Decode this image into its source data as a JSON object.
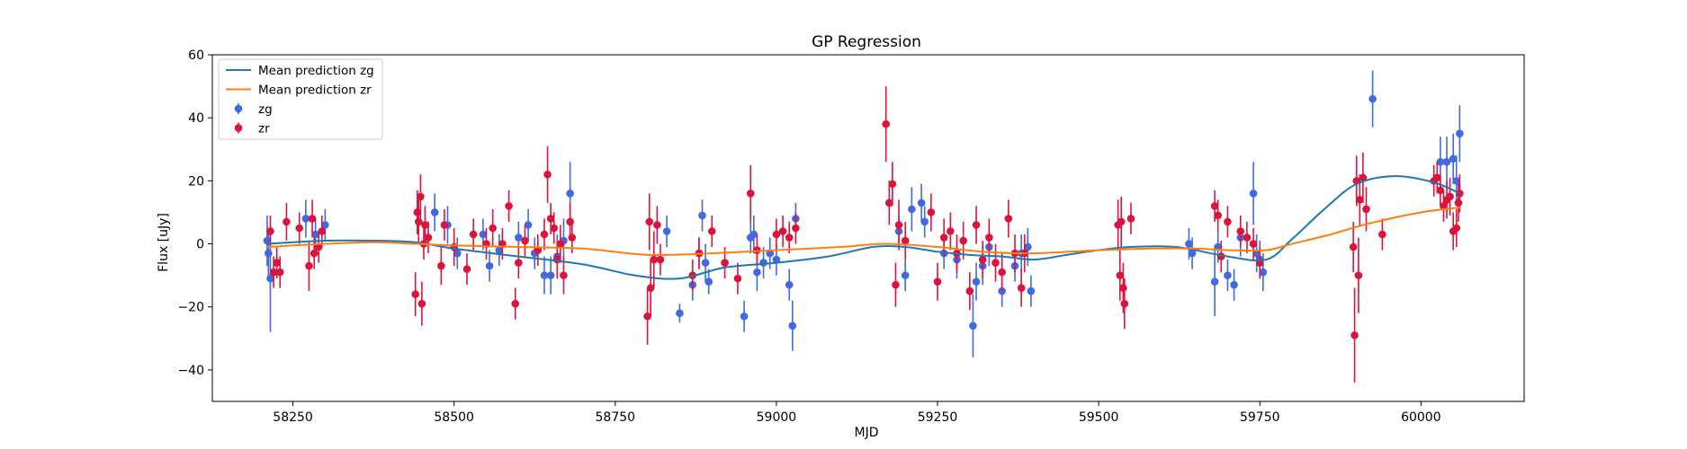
{
  "chart_data": {
    "type": "scatter",
    "title": "GP Regression",
    "xlabel": "MJD",
    "ylabel": "Flux [uJy]",
    "xlim": [
      58125,
      60160
    ],
    "ylim": [
      -50,
      60
    ],
    "xticks": [
      58250,
      58500,
      58750,
      59000,
      59250,
      59500,
      59750,
      60000
    ],
    "yticks": [
      -40,
      -20,
      0,
      20,
      40,
      60
    ],
    "grid": false,
    "legend": {
      "position": "top-left",
      "entries": [
        {
          "label": "Mean prediction zg",
          "kind": "line",
          "color": "#1f77b4"
        },
        {
          "label": "Mean prediction zr",
          "kind": "line",
          "color": "#ff7f0e"
        },
        {
          "label": "zg",
          "kind": "errorbar",
          "color": "#4169e1"
        },
        {
          "label": "zr",
          "kind": "errorbar",
          "color": "#dc143c"
        }
      ]
    },
    "series": [
      {
        "name": "Mean prediction zg",
        "kind": "line",
        "color": "#1f77b4",
        "x": [
          58210,
          58300,
          58380,
          58440,
          58500,
          58600,
          58700,
          58780,
          58850,
          58920,
          59000,
          59080,
          59150,
          59200,
          59250,
          59300,
          59350,
          59400,
          59450,
          59500,
          59550,
          59620,
          59700,
          59760,
          59800,
          59850,
          59900,
          59960,
          60020,
          60060
        ],
        "y": [
          0,
          1,
          1,
          0.5,
          -1.5,
          -4,
          -6.5,
          -10,
          -11,
          -7.5,
          -6,
          -4,
          -1,
          -1,
          -2.5,
          -3.5,
          -4,
          -5,
          -3.5,
          -2,
          -1,
          -1,
          -4,
          -5,
          1.5,
          11,
          19,
          21.5,
          19.5,
          16
        ]
      },
      {
        "name": "Mean prediction zr",
        "kind": "line",
        "color": "#ff7f0e",
        "x": [
          58210,
          58300,
          58380,
          58440,
          58500,
          58600,
          58700,
          58800,
          58900,
          59000,
          59100,
          59170,
          59250,
          59320,
          59400,
          59500,
          59580,
          59650,
          59700,
          59760,
          59800,
          59860,
          59920,
          60000,
          60060
        ],
        "y": [
          -1,
          0,
          0.5,
          0,
          -0.5,
          -1,
          -1.5,
          -3.5,
          -3,
          -2,
          -1,
          0,
          -1,
          -2.5,
          -3,
          -2,
          -1.5,
          -1.5,
          -2,
          -2,
          0,
          3,
          6.5,
          10,
          11.5
        ]
      },
      {
        "name": "zg",
        "kind": "errorbar",
        "color": "#4169e1",
        "x": [
          58210,
          58212,
          58215,
          58270,
          58285,
          58300,
          58470,
          58490,
          58505,
          58545,
          58555,
          58570,
          58600,
          58615,
          58625,
          58640,
          58650,
          58660,
          58670,
          58680,
          58830,
          58850,
          58870,
          58880,
          58885,
          58890,
          58895,
          58950,
          58960,
          58965,
          58970,
          58980,
          58990,
          59000,
          59020,
          59025,
          59030,
          59190,
          59200,
          59210,
          59225,
          59230,
          59260,
          59280,
          59305,
          59310,
          59320,
          59330,
          59350,
          59370,
          59380,
          59390,
          59395,
          59640,
          59645,
          59680,
          59685,
          59700,
          59710,
          59720,
          59740,
          59745,
          59750,
          59755,
          59925,
          60030,
          60040,
          60050,
          60055,
          60060
        ],
        "y": [
          1,
          -3,
          -11,
          8,
          3,
          6,
          10,
          6,
          -3,
          3,
          -7,
          -2,
          2,
          6,
          -3,
          -10,
          -10,
          -4,
          1,
          16,
          4,
          -22,
          -13,
          -3,
          9,
          -6,
          -12,
          -23,
          2,
          3,
          -9,
          -6,
          -3,
          -5,
          -13,
          -26,
          8,
          4,
          -10,
          11,
          13,
          7,
          -3,
          -5,
          -26,
          -12,
          -7,
          -1,
          -15,
          -7,
          -3,
          -1,
          -15,
          0,
          -3,
          -12,
          -1,
          -10,
          -13,
          2,
          16,
          -3,
          -5,
          -9,
          46,
          26,
          26,
          27,
          20,
          35
        ],
        "err": [
          8,
          8,
          17,
          6,
          5,
          5,
          6,
          6,
          5,
          5,
          5,
          5,
          5,
          5,
          5,
          6,
          6,
          7,
          7,
          10,
          5,
          3,
          5,
          5,
          5,
          6,
          4,
          5,
          5,
          6,
          6,
          5,
          5,
          5,
          5,
          8,
          5,
          5,
          5,
          7,
          6,
          5,
          5,
          6,
          10,
          6,
          6,
          6,
          5,
          5,
          6,
          6,
          5,
          5,
          5,
          11,
          5,
          5,
          5,
          6,
          10,
          6,
          6,
          6,
          9,
          8,
          8,
          8,
          8,
          9
        ]
      },
      {
        "name": "zr",
        "kind": "errorbar",
        "color": "#dc143c",
        "x": [
          58215,
          58220,
          58225,
          58230,
          58240,
          58260,
          58275,
          58280,
          58283,
          58290,
          58295,
          58440,
          58443,
          58445,
          58448,
          58450,
          58453,
          58455,
          58460,
          58480,
          58485,
          58500,
          58520,
          58530,
          58550,
          58560,
          58575,
          58585,
          58595,
          58600,
          58610,
          58630,
          58640,
          58645,
          58650,
          58655,
          58660,
          58665,
          58670,
          58680,
          58683,
          58800,
          58803,
          58805,
          58810,
          58815,
          58820,
          58870,
          58880,
          58900,
          58920,
          58940,
          58960,
          58970,
          59000,
          59010,
          59020,
          59030,
          59170,
          59175,
          59180,
          59185,
          59190,
          59200,
          59240,
          59250,
          59260,
          59270,
          59280,
          59290,
          59300,
          59310,
          59320,
          59330,
          59340,
          59350,
          59360,
          59370,
          59380,
          59385,
          59530,
          59533,
          59535,
          59538,
          59540,
          59550,
          59680,
          59685,
          59690,
          59700,
          59720,
          59730,
          59740,
          59750,
          59895,
          59897,
          59900,
          59903,
          59905,
          59910,
          59915,
          59940,
          60020,
          60025,
          60030,
          60035,
          60040,
          60045,
          60050,
          60055,
          60058,
          60060
        ],
        "y": [
          4,
          -9,
          -6,
          -9,
          7,
          5,
          -7,
          8,
          -3,
          -1,
          4,
          -16,
          10,
          7,
          15,
          -19,
          0,
          6,
          2,
          -7,
          6,
          -1,
          -8,
          3,
          0,
          5,
          0,
          12,
          -19,
          -6,
          1,
          -2,
          3,
          22,
          8,
          5,
          -5,
          0,
          -10,
          7,
          2,
          -23,
          7,
          -14,
          -5,
          6,
          -5,
          -10,
          -3,
          4,
          -6,
          -11,
          16,
          -2,
          3,
          4,
          2,
          5,
          38,
          13,
          19,
          -13,
          6,
          1,
          10,
          -12,
          2,
          4,
          -3,
          1,
          -15,
          6,
          -5,
          2,
          -6,
          -9,
          8,
          -3,
          -14,
          -3,
          6,
          -10,
          7,
          -14,
          -19,
          8,
          12,
          9,
          -4,
          7,
          4,
          2,
          0,
          -6,
          -1,
          -29,
          20,
          -10,
          14,
          21,
          11,
          3,
          20,
          21,
          17,
          12,
          14,
          15,
          4,
          5,
          13,
          16
        ],
        "err": [
          5,
          5,
          5,
          5,
          6,
          5,
          8,
          6,
          5,
          5,
          5,
          7,
          7,
          7,
          7,
          7,
          5,
          6,
          5,
          6,
          5,
          6,
          5,
          5,
          5,
          6,
          5,
          5,
          5,
          5,
          5,
          5,
          5,
          9,
          5,
          5,
          6,
          6,
          6,
          6,
          5,
          9,
          9,
          9,
          9,
          6,
          5,
          5,
          5,
          5,
          5,
          5,
          9,
          5,
          5,
          5,
          5,
          5,
          12,
          7,
          7,
          7,
          8,
          6,
          6,
          6,
          6,
          6,
          6,
          6,
          6,
          6,
          6,
          6,
          6,
          6,
          6,
          6,
          6,
          6,
          8,
          8,
          8,
          8,
          8,
          5,
          5,
          5,
          5,
          5,
          5,
          5,
          5,
          5,
          8,
          15,
          8,
          12,
          8,
          8,
          7,
          5,
          5,
          5,
          5,
          5,
          6,
          6,
          6,
          6,
          6,
          6
        ]
      }
    ]
  }
}
